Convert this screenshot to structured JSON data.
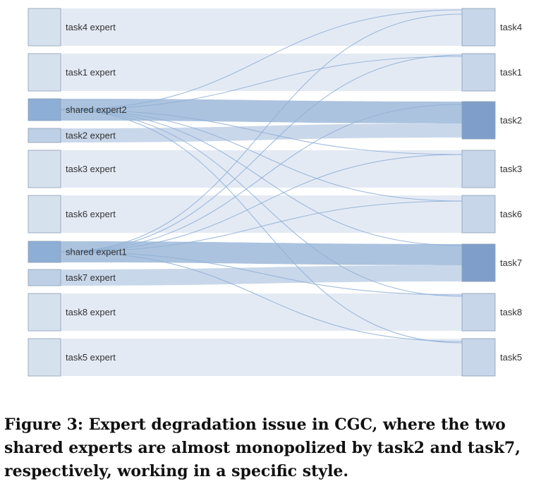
{
  "sources": [
    {
      "id": "task4_expert",
      "label": "task4 expert",
      "kind": "task"
    },
    {
      "id": "task1_expert",
      "label": "task1 expert",
      "kind": "task"
    },
    {
      "id": "shared_expert2",
      "label": "shared expert2",
      "kind": "shared"
    },
    {
      "id": "task2_expert",
      "label": "task2 expert",
      "kind": "task-small"
    },
    {
      "id": "task3_expert",
      "label": "task3 expert",
      "kind": "task"
    },
    {
      "id": "task6_expert",
      "label": "task6 expert",
      "kind": "task"
    },
    {
      "id": "shared_expert1",
      "label": "shared expert1",
      "kind": "shared"
    },
    {
      "id": "task7_expert",
      "label": "task7 expert",
      "kind": "task-small"
    },
    {
      "id": "task8_expert",
      "label": "task8 expert",
      "kind": "task"
    },
    {
      "id": "task5_expert",
      "label": "task5 expert",
      "kind": "task"
    }
  ],
  "targets": [
    {
      "id": "task4",
      "label": "task4"
    },
    {
      "id": "task1",
      "label": "task1"
    },
    {
      "id": "task2",
      "label": "task2"
    },
    {
      "id": "task3",
      "label": "task3"
    },
    {
      "id": "task6",
      "label": "task6"
    },
    {
      "id": "task7",
      "label": "task7"
    },
    {
      "id": "task8",
      "label": "task8"
    },
    {
      "id": "task5",
      "label": "task5"
    }
  ],
  "flows": [
    {
      "from": "task4_expert",
      "to": "task4",
      "weight": 1.0
    },
    {
      "from": "task1_expert",
      "to": "task1",
      "weight": 1.0
    },
    {
      "from": "shared_expert2",
      "to": "task2",
      "weight": 0.6
    },
    {
      "from": "task2_expert",
      "to": "task2",
      "weight": 0.4
    },
    {
      "from": "task3_expert",
      "to": "task3",
      "weight": 1.0
    },
    {
      "from": "task6_expert",
      "to": "task6",
      "weight": 1.0
    },
    {
      "from": "shared_expert1",
      "to": "task7",
      "weight": 0.6
    },
    {
      "from": "task7_expert",
      "to": "task7",
      "weight": 0.4
    },
    {
      "from": "task8_expert",
      "to": "task8",
      "weight": 1.0
    },
    {
      "from": "task5_expert",
      "to": "task5",
      "weight": 1.0
    },
    {
      "from": "shared_expert2",
      "to": "task4",
      "weight": 0.01
    },
    {
      "from": "shared_expert2",
      "to": "task1",
      "weight": 0.01
    },
    {
      "from": "shared_expert2",
      "to": "task3",
      "weight": 0.01
    },
    {
      "from": "shared_expert2",
      "to": "task6",
      "weight": 0.01
    },
    {
      "from": "shared_expert2",
      "to": "task7",
      "weight": 0.01
    },
    {
      "from": "shared_expert2",
      "to": "task8",
      "weight": 0.01
    },
    {
      "from": "shared_expert2",
      "to": "task5",
      "weight": 0.01
    },
    {
      "from": "shared_expert1",
      "to": "task4",
      "weight": 0.01
    },
    {
      "from": "shared_expert1",
      "to": "task1",
      "weight": 0.01
    },
    {
      "from": "shared_expert1",
      "to": "task2",
      "weight": 0.01
    },
    {
      "from": "shared_expert1",
      "to": "task3",
      "weight": 0.01
    },
    {
      "from": "shared_expert1",
      "to": "task6",
      "weight": 0.01
    },
    {
      "from": "shared_expert1",
      "to": "task8",
      "weight": 0.01
    },
    {
      "from": "shared_expert1",
      "to": "task5",
      "weight": 0.01
    }
  ],
  "colors": {
    "node_task": "#d6e1ee",
    "node_task_small": "#bed0e6",
    "node_shared": "#8daed5",
    "node_target": "#c7d6e8",
    "node_target_shared": "#7f9fca",
    "node_border": "#8a9db5",
    "flow_task": "#dfe6f2",
    "flow_shared": "#a3bddc",
    "flow_small": "#c3d3e8",
    "flow_thin": "#8fb0d6"
  },
  "caption": "Figure 3: Expert degradation issue in CGC, where the two shared experts are almost monopolized by task2 and task7, respectively, working in a specific style."
}
